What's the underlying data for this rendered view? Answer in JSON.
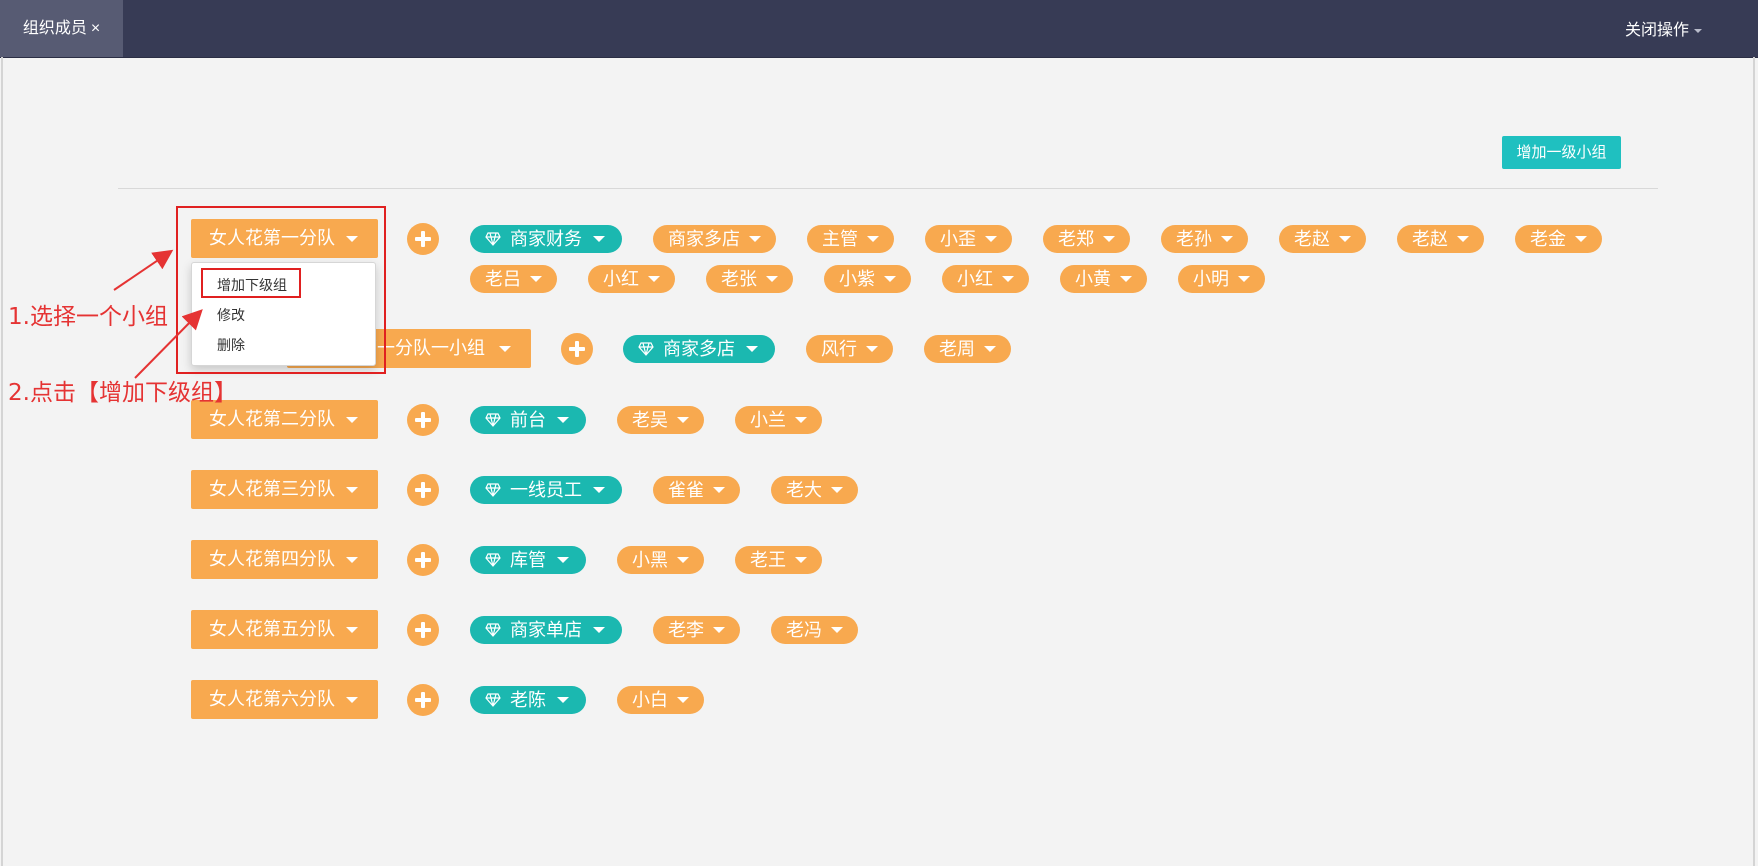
{
  "tab": {
    "label": "组织成员",
    "close": "×"
  },
  "header": {
    "close_ops_label": "关闭操作"
  },
  "toolbar": {
    "add_top_label": "增加一级小组"
  },
  "teams": [
    {
      "name": "女人花第一分队",
      "roles": [
        {
          "role": "商家财务",
          "members": [
            "商家多店",
            "主管",
            "小歪",
            "老郑",
            "老孙",
            "老赵",
            "老赵",
            "老金",
            "老吕",
            "小红",
            "老张",
            "小紫",
            "小红",
            "小黄",
            "小明"
          ]
        }
      ]
    },
    {
      "name": "女人花第一分队一小组",
      "is_sub": true,
      "roles": [
        {
          "role": "商家多店",
          "members": [
            "风行",
            "老周"
          ]
        }
      ]
    },
    {
      "name": "女人花第二分队",
      "roles": [
        {
          "role": "前台",
          "members": [
            "老吴",
            "小兰"
          ]
        }
      ]
    },
    {
      "name": "女人花第三分队",
      "roles": [
        {
          "role": "一线员工",
          "members": [
            "雀雀",
            "老大"
          ]
        }
      ]
    },
    {
      "name": "女人花第四分队",
      "roles": [
        {
          "role": "库管",
          "members": [
            "小黑",
            "老王"
          ]
        }
      ]
    },
    {
      "name": "女人花第五分队",
      "roles": [
        {
          "role": "商家单店",
          "members": [
            "老李",
            "老冯"
          ]
        }
      ]
    },
    {
      "name": "女人花第六分队",
      "roles": [
        {
          "role": "老陈",
          "members": [
            "小白"
          ]
        }
      ]
    }
  ],
  "dropdown": {
    "items": [
      "增加下级组",
      "修改",
      "删除"
    ]
  },
  "annotations": {
    "step1": "1.选择一个小组",
    "step2": "2.点击【增加下级组】"
  },
  "colors": {
    "header": "#373b55",
    "tab_active": "#575b73",
    "orange": "#f8a94f",
    "teal": "#1bb8b0",
    "accent": "#1fc0c0",
    "annotation": "#e53333"
  },
  "icons": {
    "role_icon": "diamond-icon",
    "add_icon": "plus-circle-icon"
  }
}
